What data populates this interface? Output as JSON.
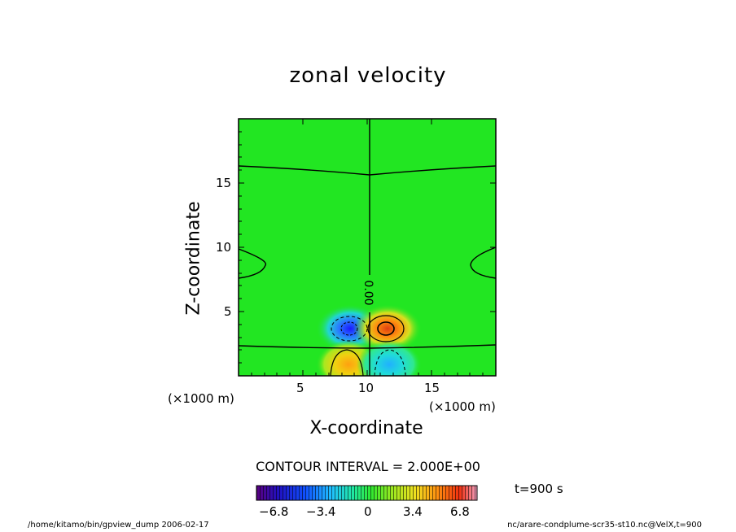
{
  "chart_data": {
    "type": "heatmap",
    "title": "zonal velocity",
    "xlabel": "X-coordinate",
    "ylabel": "Z-coordinate",
    "x_unit": "(×1000 m)",
    "z_unit": "(×1000 m)",
    "xlim": [
      0,
      20
    ],
    "ylim": [
      0,
      20
    ],
    "x_ticks": [
      "5",
      "10",
      "15"
    ],
    "y_ticks": [
      "5",
      "10",
      "15"
    ],
    "contour_label": "0.00",
    "contour_interval": "CONTOUR INTERVAL = 2.000E+00",
    "colorbar": {
      "range": [
        -8.5,
        8.5
      ],
      "tick_labels": [
        "−6.8",
        "−3.4",
        "0",
        "3.4",
        "6.8"
      ],
      "tick_values": [
        -6.8,
        -3.4,
        0,
        3.4,
        6.8
      ]
    },
    "features": [
      {
        "x": 8.5,
        "z": 3.8,
        "value": -6.5
      },
      {
        "x": 11.5,
        "z": 3.8,
        "value": 7.0
      },
      {
        "x": 8.5,
        "z": 1.0,
        "value": 4.5
      },
      {
        "x": 11.5,
        "z": 1.0,
        "value": -4.0
      }
    ]
  },
  "time_label": "t=900 s",
  "footer_left": "/home/kitamo/bin/gpview_dump  2006-02-17",
  "footer_right": "nc/arare-condplume-scr35-st10.nc@VelX,t=900"
}
